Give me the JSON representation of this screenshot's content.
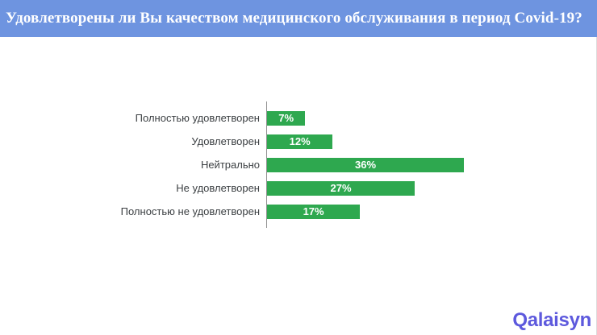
{
  "header": {
    "title": "Удовлетворены ли Вы качеством медицинского обслуживания в период Covid-19?"
  },
  "chart_data": {
    "type": "bar",
    "orientation": "horizontal",
    "title": "Удовлетворены ли Вы качеством медицинского обслуживания в период Covid-19?",
    "categories": [
      "Полностью удовлетворен",
      "Удовлетворен",
      "Нейтрально",
      "Не удовлетворен",
      "Полностью не удовлетворен"
    ],
    "values": [
      7,
      12,
      36,
      27,
      17
    ],
    "data_labels": [
      "7%",
      "12%",
      "36%",
      "27%",
      "17%"
    ],
    "xlabel": "",
    "ylabel": "",
    "xlim": [
      0,
      36
    ],
    "grid": false,
    "legend": false,
    "data_labels_position": "inside-center"
  },
  "footer": {
    "logo_text": "Qalaisyn"
  },
  "colors": {
    "header_bg": "#6e94e0",
    "header_text": "#ffffff",
    "bar": "#2ea84f",
    "bar_label": "#ffffff",
    "category_label": "#3c4043",
    "axis_line": "#8f8f8f",
    "logo": "#5d59dd",
    "background": "#ffffff"
  }
}
